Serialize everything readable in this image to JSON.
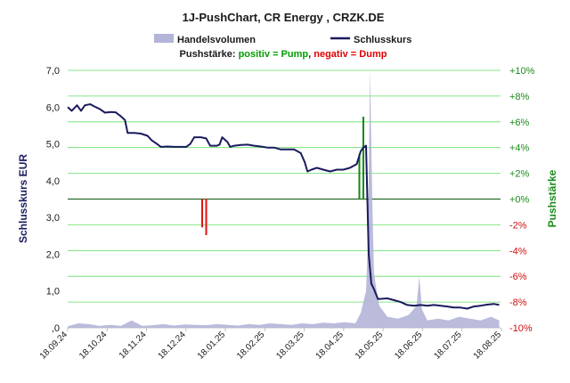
{
  "chart_data": {
    "type": "line",
    "title": "1J-PushChart, CR Energy , CRZK.DE",
    "legend": {
      "items": [
        {
          "label": "Handelsvolumen",
          "color": "#b4b4d8",
          "kind": "area"
        },
        {
          "label": "Schlusskurs",
          "color": "#1a1a5e",
          "kind": "line"
        }
      ],
      "placement": "top"
    },
    "subtitle": {
      "prefix": "Pushstärke: ",
      "positive": "positiv = Pump",
      "sep": ", ",
      "negative": "negativ = Dump",
      "positive_color": "#00a000",
      "negative_color": "#e00000"
    },
    "ylabel": "Schlusskurs EUR",
    "y2label": "Pushstärke",
    "ylim": [
      0,
      7
    ],
    "y2lim": [
      -10,
      10
    ],
    "y_ticks": [
      "7,0",
      "6,0",
      "5,0",
      "4,0",
      "3,0",
      "2,0",
      "1,0",
      ",0"
    ],
    "y2_ticks": [
      "+10%",
      "+8%",
      "+6%",
      "+4%",
      "+2%",
      "+0%",
      "-2%",
      "-4%",
      "-6%",
      "-8%",
      "-10%"
    ],
    "x_ticks": [
      "18.09.24",
      "18.10.24",
      "18.11.24",
      "18.12.24",
      "18.01.25",
      "18.02.25",
      "18.03.25",
      "18.04.25",
      "18.05.25",
      "18.06.25",
      "18.07.25",
      "18.08.25"
    ],
    "grid": true,
    "series": [
      {
        "name": "Schlusskurs",
        "color": "#1a1a5e",
        "values": [
          [
            0,
            6.0
          ],
          [
            3,
            5.9
          ],
          [
            7,
            6.05
          ],
          [
            10,
            5.9
          ],
          [
            13,
            6.05
          ],
          [
            17,
            6.08
          ],
          [
            20,
            6.02
          ],
          [
            24,
            5.95
          ],
          [
            28,
            5.85
          ],
          [
            32,
            5.87
          ],
          [
            36,
            5.86
          ],
          [
            40,
            5.75
          ],
          [
            43,
            5.65
          ],
          [
            45,
            5.3
          ],
          [
            50,
            5.3
          ],
          [
            55,
            5.28
          ],
          [
            60,
            5.22
          ],
          [
            63,
            5.1
          ],
          [
            67,
            5.0
          ],
          [
            70,
            4.92
          ],
          [
            75,
            4.93
          ],
          [
            80,
            4.92
          ],
          [
            85,
            4.92
          ],
          [
            89,
            4.92
          ],
          [
            92,
            5.0
          ],
          [
            95,
            5.18
          ],
          [
            100,
            5.18
          ],
          [
            104,
            5.15
          ],
          [
            107,
            4.95
          ],
          [
            112,
            4.95
          ],
          [
            114,
            4.98
          ],
          [
            116,
            5.18
          ],
          [
            120,
            5.05
          ],
          [
            122,
            4.92
          ],
          [
            125,
            4.95
          ],
          [
            130,
            4.97
          ],
          [
            135,
            4.98
          ],
          [
            140,
            4.95
          ],
          [
            145,
            4.93
          ],
          [
            150,
            4.9
          ],
          [
            155,
            4.9
          ],
          [
            160,
            4.85
          ],
          [
            165,
            4.85
          ],
          [
            170,
            4.85
          ],
          [
            175,
            4.75
          ],
          [
            178,
            4.5
          ],
          [
            180,
            4.25
          ],
          [
            183,
            4.3
          ],
          [
            187,
            4.35
          ],
          [
            192,
            4.3
          ],
          [
            197,
            4.25
          ],
          [
            202,
            4.3
          ],
          [
            207,
            4.3
          ],
          [
            212,
            4.35
          ],
          [
            217,
            4.45
          ],
          [
            220,
            4.8
          ],
          [
            222,
            4.9
          ],
          [
            224,
            4.95
          ],
          [
            226,
            2.0
          ],
          [
            228,
            1.2
          ],
          [
            230,
            1.05
          ],
          [
            233,
            0.78
          ],
          [
            240,
            0.8
          ],
          [
            245,
            0.75
          ],
          [
            250,
            0.7
          ],
          [
            255,
            0.62
          ],
          [
            260,
            0.6
          ],
          [
            265,
            0.62
          ],
          [
            270,
            0.6
          ],
          [
            275,
            0.62
          ],
          [
            280,
            0.6
          ],
          [
            285,
            0.58
          ],
          [
            290,
            0.55
          ],
          [
            295,
            0.55
          ],
          [
            300,
            0.52
          ],
          [
            305,
            0.58
          ],
          [
            310,
            0.6
          ],
          [
            315,
            0.63
          ],
          [
            320,
            0.65
          ],
          [
            324,
            0.62
          ]
        ]
      },
      {
        "name": "Handelsvolumen",
        "color": "#b4b4d8",
        "values": [
          [
            0,
            0.04
          ],
          [
            8,
            0.12
          ],
          [
            16,
            0.1
          ],
          [
            24,
            0.05
          ],
          [
            32,
            0.08
          ],
          [
            40,
            0.05
          ],
          [
            48,
            0.2
          ],
          [
            56,
            0.05
          ],
          [
            64,
            0.07
          ],
          [
            72,
            0.1
          ],
          [
            80,
            0.06
          ],
          [
            88,
            0.09
          ],
          [
            96,
            0.08
          ],
          [
            104,
            0.07
          ],
          [
            112,
            0.1
          ],
          [
            120,
            0.08
          ],
          [
            128,
            0.06
          ],
          [
            136,
            0.1
          ],
          [
            144,
            0.08
          ],
          [
            152,
            0.12
          ],
          [
            160,
            0.1
          ],
          [
            168,
            0.08
          ],
          [
            176,
            0.12
          ],
          [
            184,
            0.1
          ],
          [
            192,
            0.14
          ],
          [
            200,
            0.12
          ],
          [
            208,
            0.15
          ],
          [
            216,
            0.12
          ],
          [
            220,
            0.4
          ],
          [
            224,
            1.0
          ],
          [
            225,
            2.0
          ],
          [
            226,
            4.0
          ],
          [
            227,
            7.0
          ],
          [
            228,
            5.0
          ],
          [
            229,
            3.0
          ],
          [
            230,
            1.5
          ],
          [
            232,
            1.0
          ],
          [
            234,
            0.6
          ],
          [
            240,
            0.3
          ],
          [
            248,
            0.25
          ],
          [
            256,
            0.35
          ],
          [
            262,
            0.6
          ],
          [
            264,
            1.4
          ],
          [
            266,
            0.5
          ],
          [
            270,
            0.2
          ],
          [
            278,
            0.25
          ],
          [
            286,
            0.2
          ],
          [
            294,
            0.3
          ],
          [
            302,
            0.25
          ],
          [
            310,
            0.2
          ],
          [
            318,
            0.3
          ],
          [
            324,
            0.2
          ]
        ]
      },
      {
        "name": "Pushstärke",
        "kind": "bars",
        "values": [
          [
            101,
            -2.2
          ],
          [
            104,
            -2.8
          ],
          [
            219,
            3.5
          ],
          [
            222,
            6.4
          ]
        ]
      }
    ]
  }
}
